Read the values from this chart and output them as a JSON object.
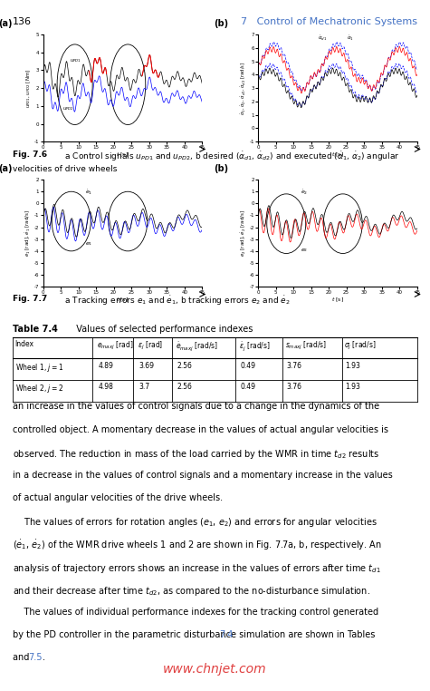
{
  "page_number": "136",
  "chapter_header": "7   Control of Mechatronic Systems",
  "header_color": "#4472C4",
  "watermark": "www.chnjet.com",
  "watermark_color": "#E04040",
  "background": "#FFFFFF",
  "table_headers": [
    "Index",
    "$e_{maxj}$ [rad]",
    "$\\varepsilon_j$ [rad]",
    "$\\dot{e}_{maxj}$ [rad/s]",
    "$\\dot{\\varepsilon}_j$ [rad/s]",
    "$s_{maxj}$ [rad/s]",
    "$\\sigma_j$ [rad/s]"
  ],
  "table_rows": [
    [
      "Wheel 1, $j=1$",
      "4.89",
      "3.69",
      "2.56",
      "0.49",
      "3.76",
      "1.93"
    ],
    [
      "Wheel 2, $j=2$",
      "4.98",
      "3.7",
      "2.56",
      "0.49",
      "3.76",
      "1.93"
    ]
  ],
  "body_text": [
    "an increase in the values of control signals due to a change in the dynamics of the",
    "controlled object. A momentary decrease in the values of actual angular velocities is",
    "observed. The reduction in mass of the load carried by the WMR in time $t_{d2}$ results",
    "in a decrease in the values of control signals and a momentary increase in the values",
    "of actual angular velocities of the drive wheels.",
    "    The values of errors for rotation angles ($e_1$, $e_2$) and errors for angular velocities",
    "($\\dot{e}_1$, $\\dot{e}_2$) of the WMR drive wheels 1 and 2 are shown in Fig. 7.7a, b, respectively. An",
    "analysis of trajectory errors shows an increase in the values of errors after time $t_{d1}$",
    "and their decrease after time $t_{d2}$, as compared to the no-disturbance simulation.",
    "    The values of individual performance indexes for the tracking control generated",
    "by the PD controller in the parametric disturbance simulation are shown in Tables 7.4",
    "and 7.5."
  ]
}
